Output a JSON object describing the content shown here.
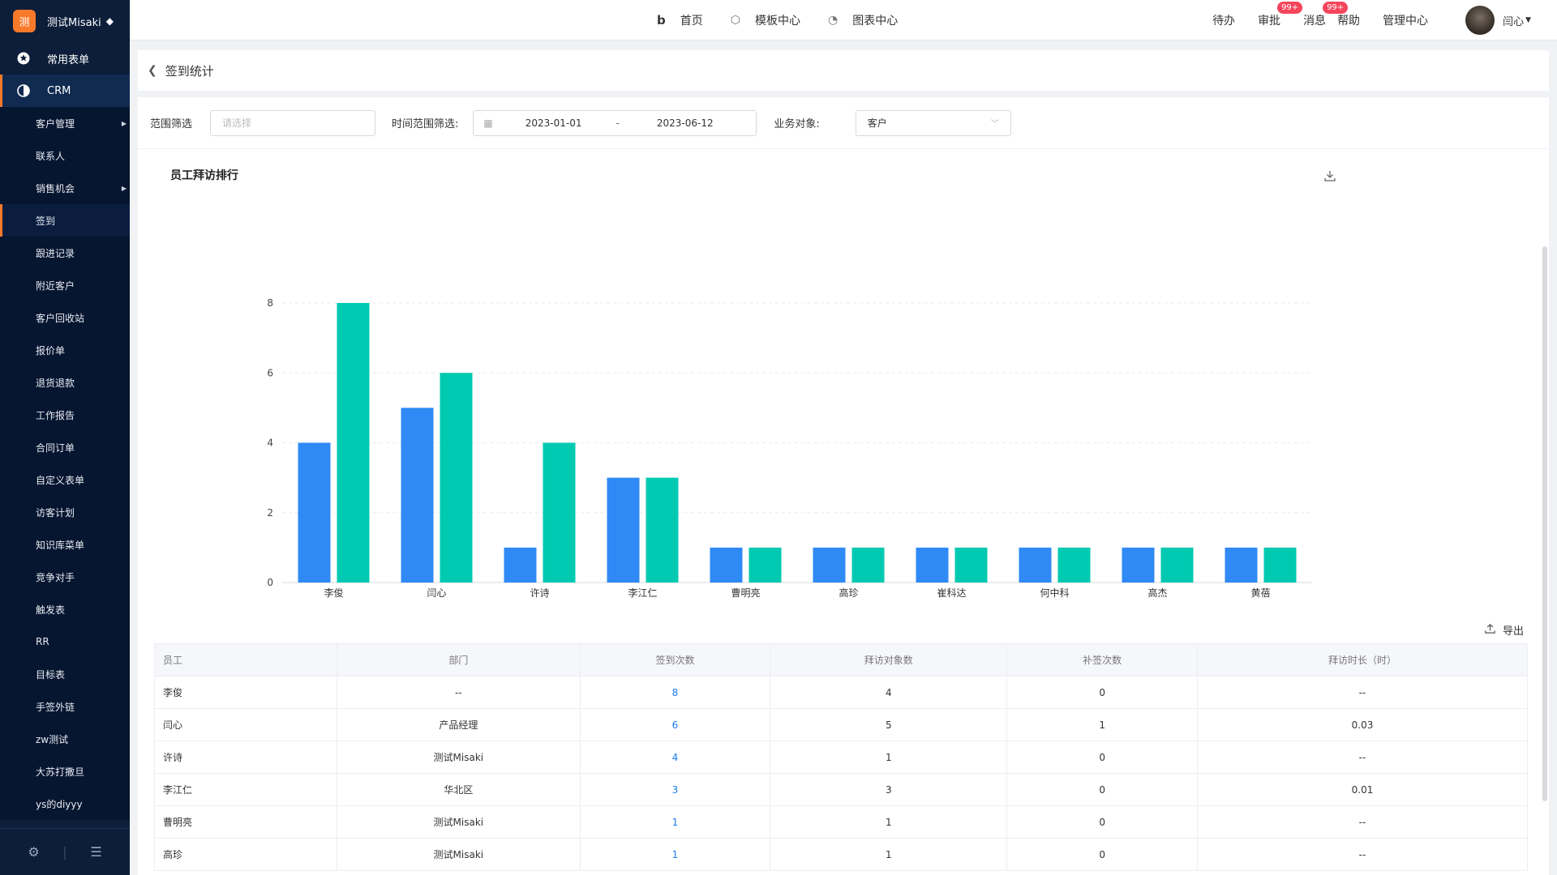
{
  "brand": {
    "logo_char": "测",
    "name": "测试Misaki",
    "diamond": "◆"
  },
  "sidebar": {
    "top_items": [
      {
        "label": "常用表单",
        "icon": "star-icon"
      },
      {
        "label": "CRM",
        "icon": "pie-icon"
      }
    ],
    "sub_items": [
      {
        "label": "客户管理",
        "has_arrow": true
      },
      {
        "label": "联系人"
      },
      {
        "label": "销售机会",
        "has_arrow": true
      },
      {
        "label": "签到",
        "active": true
      },
      {
        "label": "跟进记录"
      },
      {
        "label": "附近客户"
      },
      {
        "label": "客户回收站"
      },
      {
        "label": "报价单"
      },
      {
        "label": "退货退款"
      },
      {
        "label": "工作报告"
      },
      {
        "label": "合同订单"
      },
      {
        "label": "自定义表单"
      },
      {
        "label": "访客计划"
      },
      {
        "label": "知识库菜单"
      },
      {
        "label": "竞争对手"
      },
      {
        "label": "触发表"
      },
      {
        "label": "RR"
      },
      {
        "label": "目标表"
      },
      {
        "label": "手签外链"
      },
      {
        "label": "zw测试"
      },
      {
        "label": "大苏打撒旦"
      },
      {
        "label": "ys的diyyy"
      }
    ]
  },
  "topbar": {
    "nav": [
      {
        "label": "首页",
        "icon": "b-logo-icon"
      },
      {
        "label": "模板中心",
        "icon": "cube-icon"
      },
      {
        "label": "图表中心",
        "icon": "chart-icon"
      }
    ],
    "right": {
      "todo": "待办",
      "approve": "审批",
      "approve_badge": "99+",
      "message": "消息",
      "message_badge": "99+",
      "help": "帮助",
      "admin": "管理中心",
      "user": "闫心"
    }
  },
  "page": {
    "title": "签到统计"
  },
  "filters": {
    "scope_label": "范围筛选",
    "scope_placeholder": "请选择",
    "time_label": "时间范围筛选:",
    "date_start": "2023-01-01",
    "date_sep": "-",
    "date_end": "2023-06-12",
    "object_label": "业务对象:",
    "object_value": "客户"
  },
  "chart_data": {
    "type": "bar",
    "title": "员工拜访排行",
    "categories": [
      "李俊",
      "闫心",
      "许诗",
      "李江仁",
      "曹明亮",
      "高珍",
      "崔科达",
      "何中科",
      "高杰",
      "黄蓓"
    ],
    "series": [
      {
        "name": "拜访对象数",
        "color": "#2f8af5",
        "values": [
          4,
          5,
          1,
          3,
          1,
          1,
          1,
          1,
          1,
          1
        ]
      },
      {
        "name": "签到次数",
        "color": "#00c9b1",
        "values": [
          8,
          6,
          4,
          3,
          1,
          1,
          1,
          1,
          1,
          1
        ]
      }
    ],
    "yticks": [
      0,
      2,
      4,
      6,
      8
    ],
    "ylim": [
      0,
      8
    ],
    "legend": "bottom-center"
  },
  "table": {
    "export_label": "导出",
    "columns": [
      "员工",
      "部门",
      "签到次数",
      "拜访对象数",
      "补签次数",
      "拜访时长（时）"
    ],
    "rows": [
      [
        "李俊",
        "--",
        "8",
        "4",
        "0",
        "--"
      ],
      [
        "闫心",
        "产品经理",
        "6",
        "5",
        "1",
        "0.03"
      ],
      [
        "许诗",
        "测试Misaki",
        "4",
        "1",
        "0",
        "--"
      ],
      [
        "李江仁",
        "华北区",
        "3",
        "3",
        "0",
        "0.01"
      ],
      [
        "曹明亮",
        "测试Misaki",
        "1",
        "1",
        "0",
        "--"
      ],
      [
        "高珍",
        "测试Misaki",
        "1",
        "1",
        "0",
        "--"
      ]
    ]
  }
}
